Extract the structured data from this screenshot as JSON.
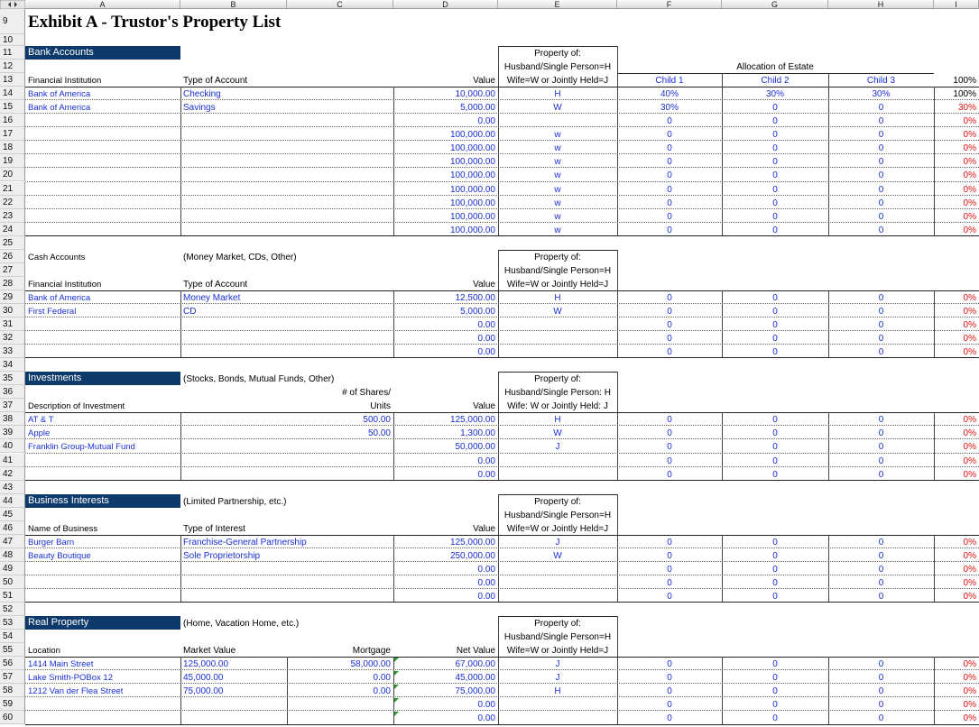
{
  "column_headers": [
    "A",
    "B",
    "C",
    "D",
    "E",
    "F",
    "G",
    "H",
    "I"
  ],
  "rows": [
    {
      "number": "9",
      "cells": {
        "A": "Exhibit A - Trustor's Property List"
      }
    },
    {
      "number": "10",
      "cells": {}
    },
    {
      "number": "11",
      "cells": {
        "A": "Bank Accounts",
        "E": "Property of:"
      }
    },
    {
      "number": "12",
      "cells": {
        "E": "Husband/Single Person=H",
        "G": "Allocation of Estate"
      }
    },
    {
      "number": "13",
      "cells": {
        "A": "Financial Institution",
        "B": "Type of Account",
        "D": "Value",
        "E": "Wife=W or Jointly Held=J",
        "F": "Child 1",
        "G": "Child 2",
        "H": "Child 3",
        "I": "100%"
      }
    },
    {
      "number": "14",
      "cells": {
        "A": "Bank of America",
        "B": "Checking",
        "D": "10,000.00",
        "E": "H",
        "F": "40%",
        "G": "30%",
        "H": "30%",
        "I": "100%"
      }
    },
    {
      "number": "15",
      "cells": {
        "A": "Bank of America",
        "B": "Savings",
        "D": "5,000.00",
        "E": "W",
        "F": "30%",
        "G": "0",
        "H": "0",
        "I": "30%"
      }
    },
    {
      "number": "16",
      "cells": {
        "D": "0.00",
        "F": "0",
        "G": "0",
        "H": "0",
        "I": "0%"
      }
    },
    {
      "number": "17",
      "cells": {
        "D": "100,000.00",
        "E": "w",
        "F": "0",
        "G": "0",
        "H": "0",
        "I": "0%"
      }
    },
    {
      "number": "18",
      "cells": {
        "D": "100,000.00",
        "E": "w",
        "F": "0",
        "G": "0",
        "H": "0",
        "I": "0%"
      }
    },
    {
      "number": "19",
      "cells": {
        "D": "100,000.00",
        "E": "w",
        "F": "0",
        "G": "0",
        "H": "0",
        "I": "0%"
      }
    },
    {
      "number": "20",
      "cells": {
        "D": "100,000.00",
        "E": "w",
        "F": "0",
        "G": "0",
        "H": "0",
        "I": "0%"
      }
    },
    {
      "number": "21",
      "cells": {
        "D": "100,000.00",
        "E": "w",
        "F": "0",
        "G": "0",
        "H": "0",
        "I": "0%"
      }
    },
    {
      "number": "22",
      "cells": {
        "D": "100,000.00",
        "E": "w",
        "F": "0",
        "G": "0",
        "H": "0",
        "I": "0%"
      }
    },
    {
      "number": "23",
      "cells": {
        "D": "100,000.00",
        "E": "w",
        "F": "0",
        "G": "0",
        "H": "0",
        "I": "0%"
      }
    },
    {
      "number": "24",
      "cells": {
        "D": "100,000.00",
        "E": "w",
        "F": "0",
        "G": "0",
        "H": "0",
        "I": "0%"
      }
    },
    {
      "number": "25",
      "cells": {}
    },
    {
      "number": "26",
      "cells": {
        "A": "Cash Accounts",
        "B": "(Money Market, CDs, Other)",
        "E": "Property of:"
      }
    },
    {
      "number": "27",
      "cells": {
        "E": "Husband/Single Person=H"
      }
    },
    {
      "number": "28",
      "cells": {
        "A": "Financial Institution",
        "B": "Type of Account",
        "D": "Value",
        "E": "Wife=W or Jointly Held=J"
      }
    },
    {
      "number": "29",
      "cells": {
        "A": "Bank of America",
        "B": "Money Market",
        "D": "12,500.00",
        "E": "H",
        "F": "0",
        "G": "0",
        "H": "0",
        "I": "0%"
      }
    },
    {
      "number": "30",
      "cells": {
        "A": "First Federal",
        "B": "CD",
        "D": "5,000.00",
        "E": "W",
        "F": "0",
        "G": "0",
        "H": "0",
        "I": "0%"
      }
    },
    {
      "number": "31",
      "cells": {
        "D": "0.00",
        "F": "0",
        "G": "0",
        "H": "0",
        "I": "0%"
      }
    },
    {
      "number": "32",
      "cells": {
        "D": "0.00",
        "F": "0",
        "G": "0",
        "H": "0",
        "I": "0%"
      }
    },
    {
      "number": "33",
      "cells": {
        "D": "0.00",
        "F": "0",
        "G": "0",
        "H": "0",
        "I": "0%"
      }
    },
    {
      "number": "34",
      "cells": {}
    },
    {
      "number": "35",
      "cells": {
        "A": "Investments",
        "B": "(Stocks, Bonds, Mutual Funds, Other)",
        "E": "Property of:"
      }
    },
    {
      "number": "36",
      "cells": {
        "C": "# of Shares/",
        "E": "Husband/Single Person: H"
      }
    },
    {
      "number": "37",
      "cells": {
        "A": "Description of Investment",
        "C": "Units",
        "D": "Value",
        "E": "Wife: W or Jointly Held: J"
      }
    },
    {
      "number": "38",
      "cells": {
        "A": "AT & T",
        "C": "500.00",
        "D": "125,000.00",
        "E": "H",
        "F": "0",
        "G": "0",
        "H": "0",
        "I": "0%"
      }
    },
    {
      "number": "39",
      "cells": {
        "A": "Apple",
        "C": "50.00",
        "D": "1,300.00",
        "E": "W",
        "F": "0",
        "G": "0",
        "H": "0",
        "I": "0%"
      }
    },
    {
      "number": "40",
      "cells": {
        "A": "Franklin Group-Mutual Fund",
        "D": "50,000.00",
        "E": "J",
        "F": "0",
        "G": "0",
        "H": "0",
        "I": "0%"
      }
    },
    {
      "number": "41",
      "cells": {
        "D": "0.00",
        "F": "0",
        "G": "0",
        "H": "0",
        "I": "0%"
      }
    },
    {
      "number": "42",
      "cells": {
        "D": "0.00",
        "F": "0",
        "G": "0",
        "H": "0",
        "I": "0%"
      }
    },
    {
      "number": "43",
      "cells": {}
    },
    {
      "number": "44",
      "cells": {
        "A": "Business Interests",
        "B": "(Limited Partnership, etc.)",
        "E": "Property of:"
      }
    },
    {
      "number": "45",
      "cells": {
        "E": "Husband/Single Person=H"
      }
    },
    {
      "number": "46",
      "cells": {
        "A": "Name of Business",
        "B": "Type of Interest",
        "D": "Value",
        "E": "Wife=W or Jointly Held=J"
      }
    },
    {
      "number": "47",
      "cells": {
        "A": "Burger Barn",
        "B": "Franchise-General Partnership",
        "D": "125,000.00",
        "E": "J",
        "F": "0",
        "G": "0",
        "H": "0",
        "I": "0%"
      }
    },
    {
      "number": "48",
      "cells": {
        "A": "Beauty Boutique",
        "B": "Sole Proprietorship",
        "D": "250,000.00",
        "E": "W",
        "F": "0",
        "G": "0",
        "H": "0",
        "I": "0%"
      }
    },
    {
      "number": "49",
      "cells": {
        "D": "0.00",
        "F": "0",
        "G": "0",
        "H": "0",
        "I": "0%"
      }
    },
    {
      "number": "50",
      "cells": {
        "D": "0.00",
        "F": "0",
        "G": "0",
        "H": "0",
        "I": "0%"
      }
    },
    {
      "number": "51",
      "cells": {
        "D": "0.00",
        "F": "0",
        "G": "0",
        "H": "0",
        "I": "0%"
      }
    },
    {
      "number": "52",
      "cells": {}
    },
    {
      "number": "53",
      "cells": {
        "A": "Real Property",
        "B": "(Home, Vacation Home, etc.)",
        "E": "Property of:"
      }
    },
    {
      "number": "54",
      "cells": {
        "E": "Husband/Single Person=H"
      }
    },
    {
      "number": "55",
      "cells": {
        "A": "Location",
        "B": "Market Value",
        "C": "Mortgage",
        "D": "Net Value",
        "E": "Wife=W or Jointly Held=J"
      }
    },
    {
      "number": "56",
      "cells": {
        "A": "1414 Main Street",
        "B": "125,000.00",
        "C": "58,000.00",
        "D": "67,000.00",
        "E": "J",
        "F": "0",
        "G": "0",
        "H": "0",
        "I": "0%"
      }
    },
    {
      "number": "57",
      "cells": {
        "A": "Lake Smith-POBox 12",
        "B": "45,000.00",
        "C": "0.00",
        "D": "45,000.00",
        "E": "J",
        "F": "0",
        "G": "0",
        "H": "0",
        "I": "0%"
      }
    },
    {
      "number": "58",
      "cells": {
        "A": "1212 Van der Flea Street",
        "B": "75,000.00",
        "C": "0.00",
        "D": "75,000.00",
        "E": "H",
        "F": "0",
        "G": "0",
        "H": "0",
        "I": "0%"
      }
    },
    {
      "number": "59",
      "cells": {
        "D": "0.00",
        "F": "0",
        "G": "0",
        "H": "0",
        "I": "0%"
      }
    },
    {
      "number": "60",
      "cells": {
        "D": "0.00",
        "F": "0",
        "G": "0",
        "H": "0",
        "I": "0%"
      }
    }
  ]
}
